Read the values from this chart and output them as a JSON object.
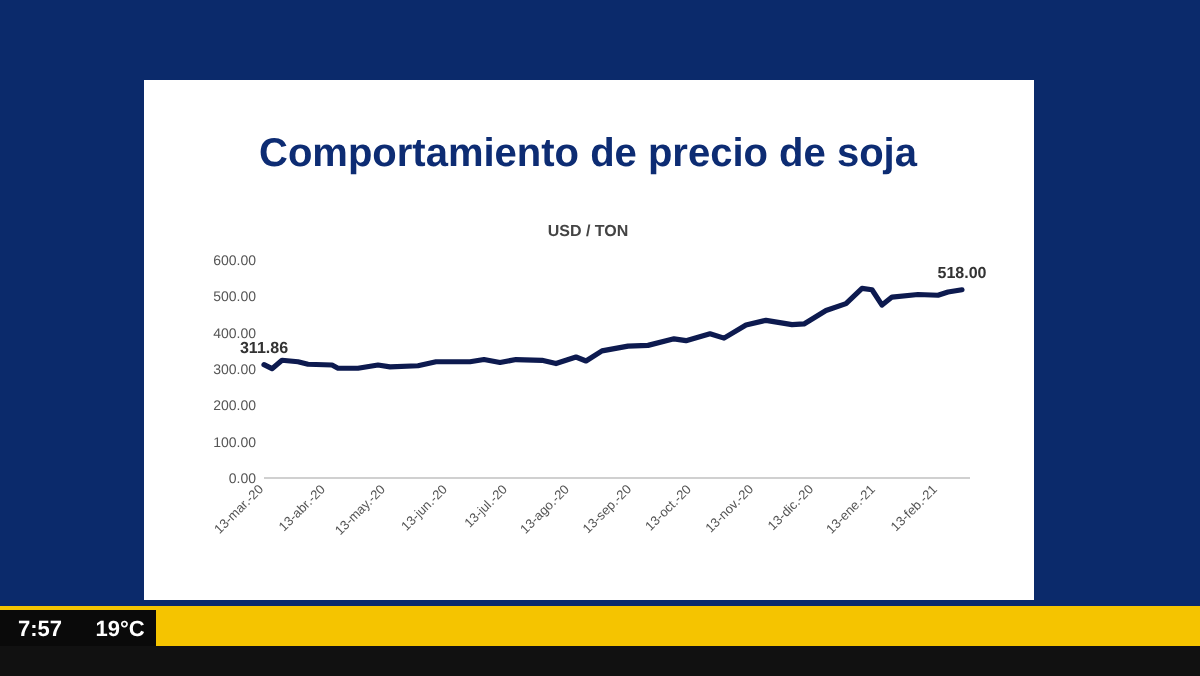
{
  "chart_data": {
    "type": "line",
    "title": "Comportamiento de precio de soja",
    "subtitle": "USD / TON",
    "x": [
      "2020-03-13",
      "2020-03-17",
      "2020-03-22",
      "2020-03-30",
      "2020-04-04",
      "2020-04-16",
      "2020-04-19",
      "2020-04-29",
      "2020-05-09",
      "2020-05-15",
      "2020-05-29",
      "2020-06-07",
      "2020-06-24",
      "2020-07-01",
      "2020-07-09",
      "2020-07-17",
      "2020-07-30",
      "2020-08-06",
      "2020-08-16",
      "2020-08-21",
      "2020-08-29",
      "2020-09-11",
      "2020-09-21",
      "2020-10-04",
      "2020-10-10",
      "2020-10-22",
      "2020-10-29",
      "2020-11-09",
      "2020-11-19",
      "2020-12-02",
      "2020-12-08",
      "2020-12-19",
      "2020-12-29",
      "2021-01-06",
      "2021-01-11",
      "2021-01-16",
      "2021-01-21",
      "2021-02-03",
      "2021-02-13",
      "2021-02-18",
      "2021-02-25"
    ],
    "series": [
      {
        "color": "#0d1a4f",
        "values": [
          311.86,
          301,
          324,
          320,
          313,
          311,
          302,
          302,
          311,
          306,
          309,
          320,
          320,
          326,
          318,
          326,
          324,
          315,
          333,
          322,
          350,
          363,
          365,
          383,
          378,
          397,
          385,
          421,
          434,
          422,
          424,
          461,
          480,
          522,
          518,
          476,
          498,
          505,
          503,
          512,
          518
        ],
        "value_labels": [
          "311.86",
          null,
          null,
          null,
          null,
          null,
          null,
          null,
          null,
          null,
          null,
          null,
          null,
          null,
          null,
          null,
          null,
          null,
          null,
          null,
          null,
          null,
          null,
          null,
          null,
          null,
          null,
          null,
          null,
          null,
          null,
          null,
          null,
          null,
          null,
          null,
          null,
          null,
          null,
          null,
          "518.00"
        ]
      }
    ],
    "xlim": [
      "2020-03-13",
      "2021-03-01"
    ],
    "xticks": [
      {
        "value": "2020-03-13",
        "label": "13-mar.-20"
      },
      {
        "value": "2020-04-13",
        "label": "13-abr.-20"
      },
      {
        "value": "2020-05-13",
        "label": "13-may.-20"
      },
      {
        "value": "2020-06-13",
        "label": "13-jun.-20"
      },
      {
        "value": "2020-07-13",
        "label": "13-jul.-20"
      },
      {
        "value": "2020-08-13",
        "label": "13-ago.-20"
      },
      {
        "value": "2020-09-13",
        "label": "13-sep.-20"
      },
      {
        "value": "2020-10-13",
        "label": "13-oct.-20"
      },
      {
        "value": "2020-11-13",
        "label": "13-nov.-20"
      },
      {
        "value": "2020-12-13",
        "label": "13-dic.-20"
      },
      {
        "value": "2021-01-13",
        "label": "13-ene.-21"
      },
      {
        "value": "2021-02-13",
        "label": "13-feb.-21"
      }
    ],
    "ylim": [
      0,
      600
    ],
    "yticks": [
      {
        "value": 0,
        "label": "0.00"
      },
      {
        "value": 100,
        "label": "100.00"
      },
      {
        "value": 200,
        "label": "200.00"
      },
      {
        "value": 300,
        "label": "300.00"
      },
      {
        "value": 400,
        "label": "400.00"
      },
      {
        "value": 500,
        "label": "500.00"
      },
      {
        "value": 600,
        "label": "600.00"
      }
    ],
    "grid": false,
    "marker": "none",
    "line_style": "solid",
    "annotations": [
      "7:57",
      "19°C"
    ]
  }
}
